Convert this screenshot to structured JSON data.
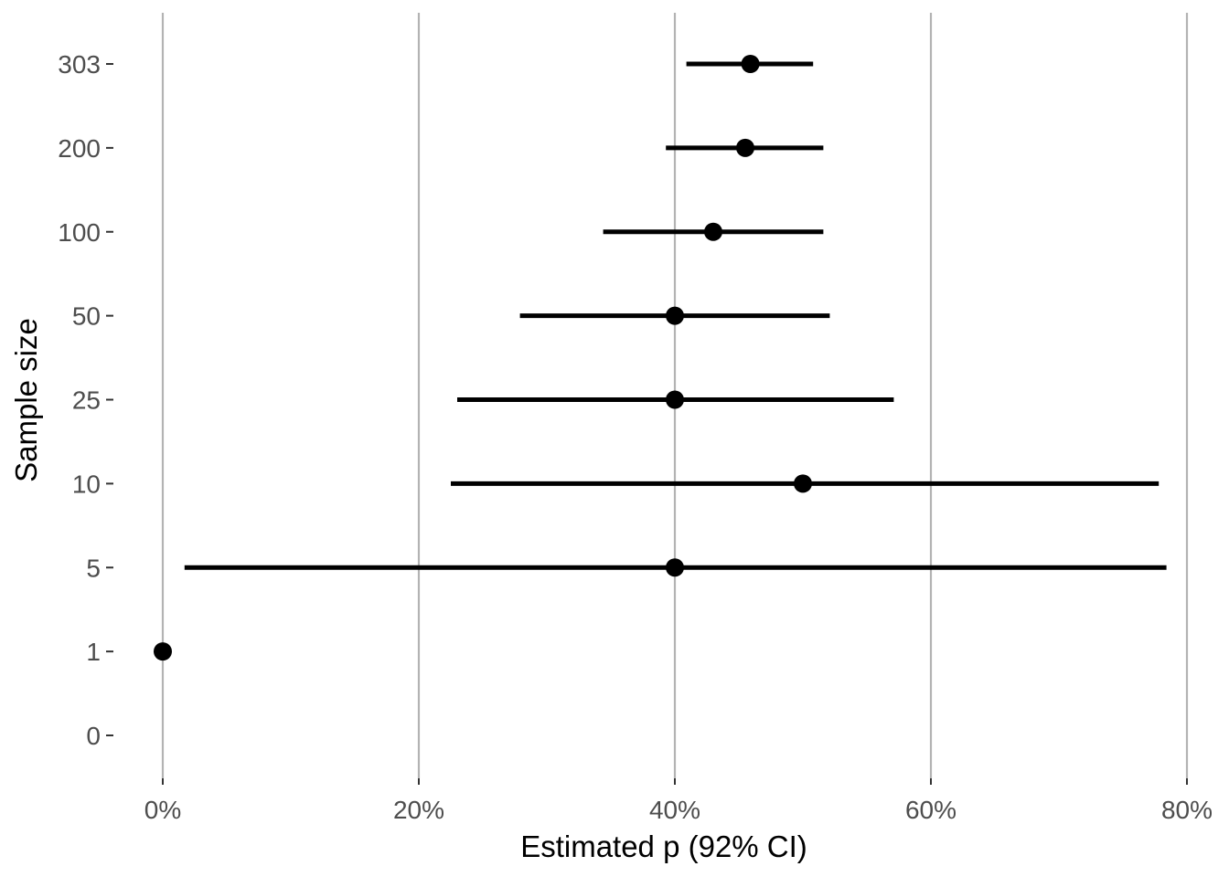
{
  "chart_data": {
    "type": "errorbar",
    "title": "",
    "xlabel": "Estimated p (92% CI)",
    "ylabel": "Sample size",
    "xlim": [
      0,
      0.8
    ],
    "x_ticks": [
      {
        "value": 0,
        "label": "0%"
      },
      {
        "value": 0.2,
        "label": "20%"
      },
      {
        "value": 0.4,
        "label": "40%"
      },
      {
        "value": 0.6,
        "label": "60%"
      },
      {
        "value": 0.8,
        "label": "80%"
      }
    ],
    "categories": [
      "0",
      "1",
      "5",
      "10",
      "25",
      "50",
      "100",
      "200",
      "303"
    ],
    "points": [
      {
        "category": "0",
        "estimate": null,
        "lower": null,
        "upper": null
      },
      {
        "category": "1",
        "estimate": 0.0,
        "lower": null,
        "upper": null
      },
      {
        "category": "5",
        "estimate": 0.4,
        "lower": 0.017,
        "upper": 0.784
      },
      {
        "category": "10",
        "estimate": 0.5,
        "lower": 0.225,
        "upper": 0.778
      },
      {
        "category": "25",
        "estimate": 0.4,
        "lower": 0.23,
        "upper": 0.571
      },
      {
        "category": "50",
        "estimate": 0.4,
        "lower": 0.279,
        "upper": 0.521
      },
      {
        "category": "100",
        "estimate": 0.43,
        "lower": 0.344,
        "upper": 0.516
      },
      {
        "category": "200",
        "estimate": 0.455,
        "lower": 0.393,
        "upper": 0.516
      },
      {
        "category": "303",
        "estimate": 0.459,
        "lower": 0.409,
        "upper": 0.508
      }
    ],
    "grid": {
      "vertical_major": true,
      "horizontal": false
    },
    "legend": "none",
    "colors": {
      "point": "#000000",
      "interval": "#000000",
      "grid": "#b3b3b3",
      "tick_text": "#4d4d4d"
    }
  }
}
